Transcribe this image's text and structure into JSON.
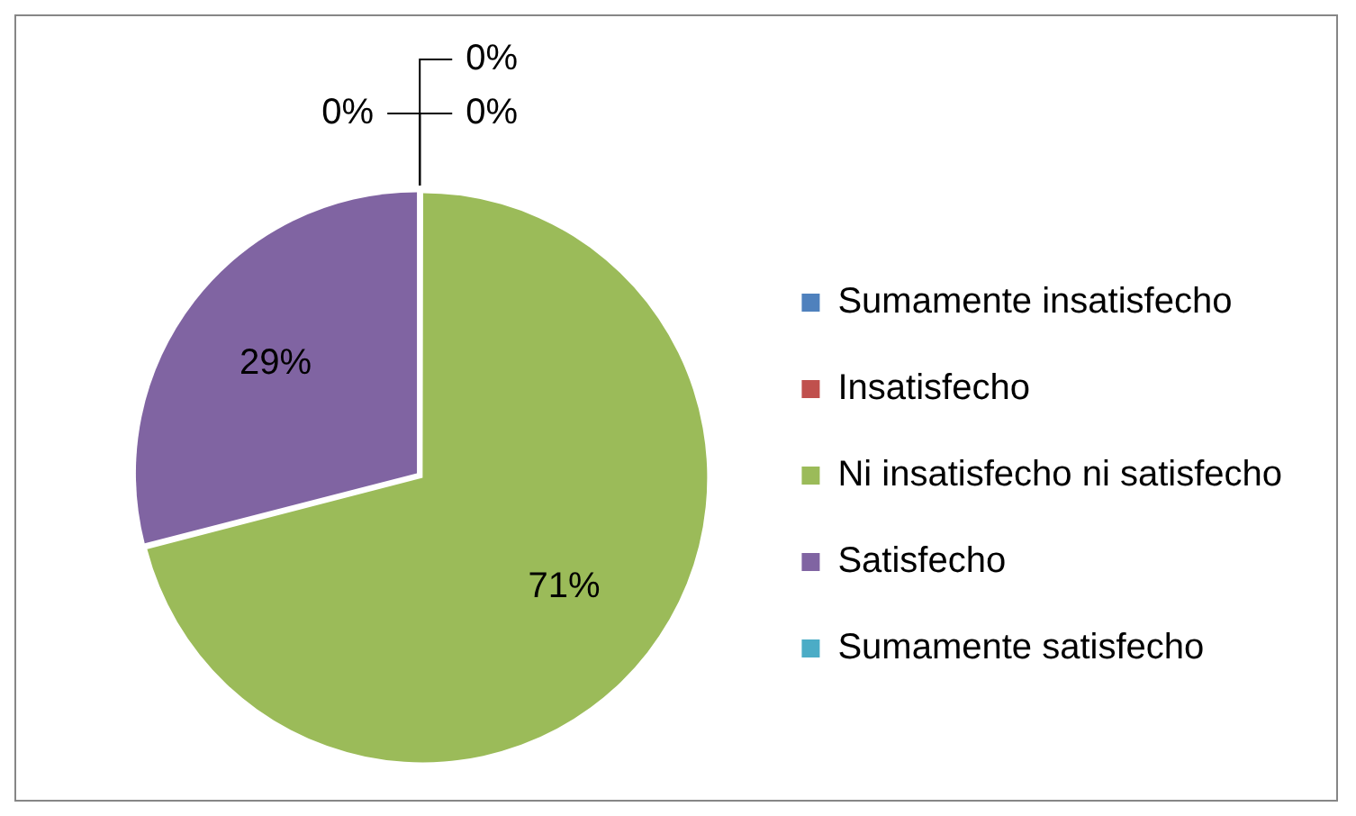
{
  "chart_data": {
    "type": "pie",
    "categories": [
      "Sumamente insatisfecho",
      "Insatisfecho",
      "Ni insatisfecho ni satisfecho",
      "Satisfecho",
      "Sumamente satisfecho"
    ],
    "values": [
      0,
      0,
      71,
      29,
      0
    ],
    "colors": [
      "#4f81bd",
      "#c0504d",
      "#9bbb59",
      "#8064a2",
      "#4bacc6"
    ],
    "value_labels": [
      "0%",
      "0%",
      "71%",
      "29%",
      "0%"
    ],
    "legend": "right"
  }
}
